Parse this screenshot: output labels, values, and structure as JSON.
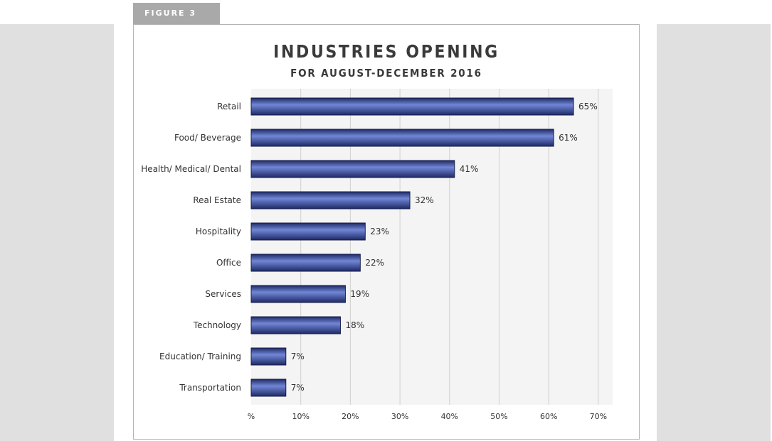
{
  "figure_label": "FIGURE 3",
  "chart_data": {
    "type": "bar",
    "orientation": "horizontal",
    "title": "INDUSTRIES OPENING",
    "subtitle": "FOR AUGUST-DECEMBER 2016",
    "categories": [
      "Retail",
      "Food/ Beverage",
      "Health/ Medical/ Dental",
      "Real Estate",
      "Hospitality",
      "Office",
      "Services",
      "Technology",
      "Education/ Training",
      "Transportation"
    ],
    "values": [
      65,
      61,
      41,
      32,
      23,
      22,
      19,
      18,
      7,
      7
    ],
    "value_labels": [
      "65%",
      "61%",
      "41%",
      "32%",
      "23%",
      "22%",
      "19%",
      "18%",
      "7%",
      "7%"
    ],
    "x_ticks": [
      0,
      10,
      20,
      30,
      40,
      50,
      60,
      70
    ],
    "x_tick_labels": [
      "%",
      "10%",
      "20%",
      "30%",
      "40%",
      "50%",
      "60%",
      "70%"
    ],
    "xlim": [
      0,
      70
    ],
    "grid": true,
    "colors": {
      "bar_dark": "#1e2a66",
      "bar_mid": "#3a4fa8",
      "bar_light": "#7186d6",
      "grid": "#d0d0d0",
      "plot_bg": "#f4f4f4"
    }
  }
}
